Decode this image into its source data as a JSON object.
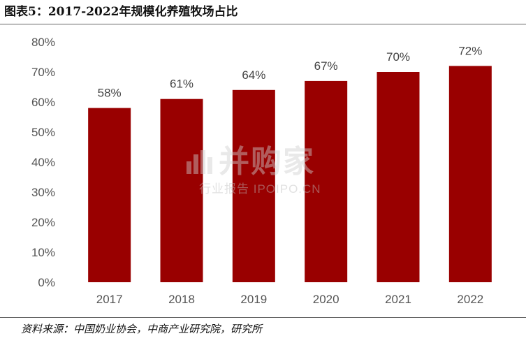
{
  "title": "图表5：2017-2022年规模化养殖牧场占比",
  "source": "资料来源：中国奶业协会，中商产业研究院，研究所",
  "watermark": {
    "main": "并购家",
    "sub": "行业报告 IPOIPO.CN"
  },
  "colors": {
    "bar": "#990000",
    "tick_text": "#555555"
  },
  "chart_data": {
    "type": "bar",
    "categories": [
      "2017",
      "2018",
      "2019",
      "2020",
      "2021",
      "2022"
    ],
    "values": [
      58,
      61,
      64,
      67,
      70,
      72
    ],
    "data_labels": [
      "58%",
      "61%",
      "64%",
      "67%",
      "70%",
      "72%"
    ],
    "y_ticks": [
      "0%",
      "10%",
      "20%",
      "30%",
      "40%",
      "50%",
      "60%",
      "70%",
      "80%"
    ],
    "ylim": [
      0,
      80
    ],
    "grid": false,
    "legend": "none",
    "title": "",
    "xlabel": "",
    "ylabel": ""
  }
}
